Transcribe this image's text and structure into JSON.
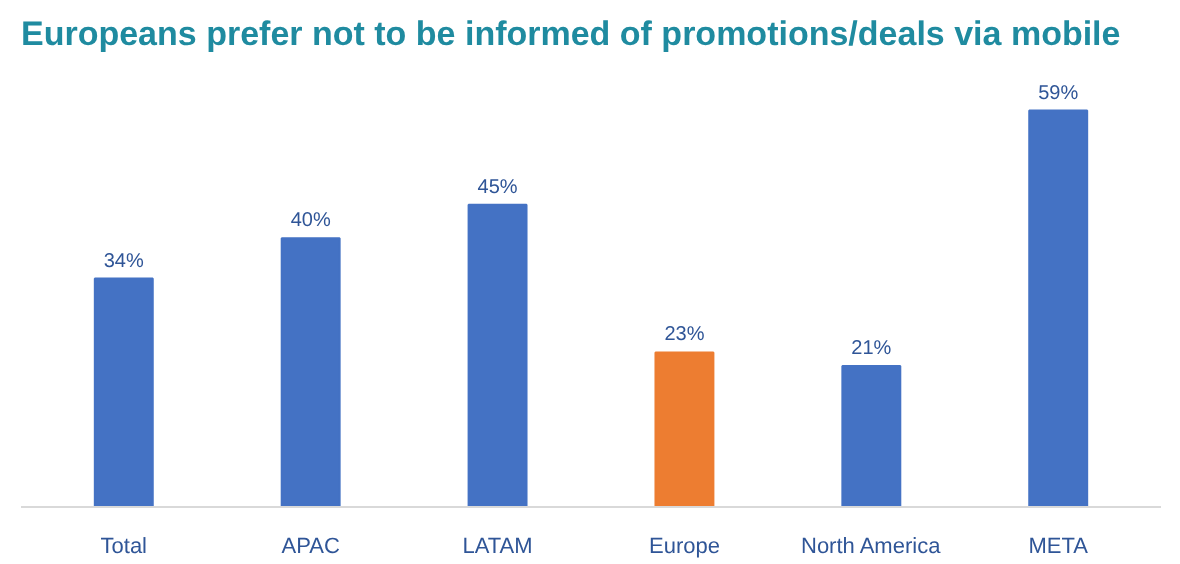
{
  "chart_data": {
    "type": "bar",
    "title": "Europeans prefer not to be informed of promotions/deals via mobile",
    "categories": [
      "Total",
      "APAC",
      "LATAM",
      "Europe",
      "North America",
      "META"
    ],
    "values": [
      34,
      40,
      45,
      23,
      21,
      59
    ],
    "colors": [
      "#4472c4",
      "#4472c4",
      "#4472c4",
      "#ed7d31",
      "#4472c4",
      "#4472c4"
    ],
    "value_labels": [
      "34%",
      "40%",
      "45%",
      "23%",
      "21%",
      "59%"
    ],
    "grid": false
  }
}
